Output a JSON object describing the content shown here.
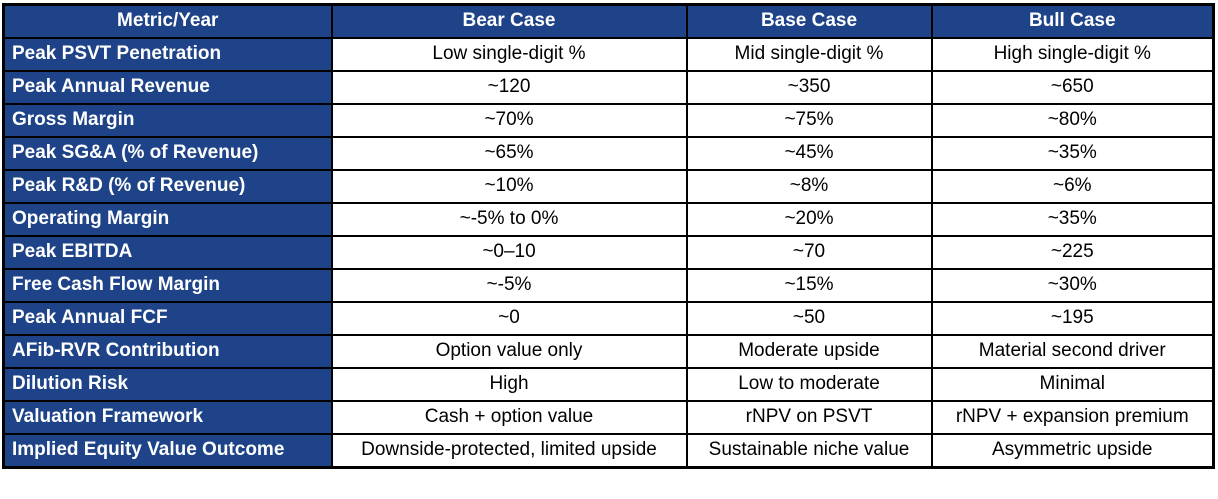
{
  "colors": {
    "header_bg": "#1e4388",
    "header_text": "#ffffff",
    "cell_bg": "#ffffff",
    "cell_text": "#000000",
    "border": "#000000"
  },
  "chart_data": {
    "type": "table",
    "title": "",
    "columns": [
      "Metric/Year",
      "Bear Case",
      "Base Case",
      "Bull Case"
    ],
    "rows": [
      {
        "metric": "Peak PSVT Penetration",
        "bear": "Low single-digit %",
        "base": "Mid single-digit %",
        "bull": "High single-digit %"
      },
      {
        "metric": "Peak Annual Revenue",
        "bear": "~120",
        "base": "~350",
        "bull": "~650"
      },
      {
        "metric": "Gross Margin",
        "bear": "~70%",
        "base": "~75%",
        "bull": "~80%"
      },
      {
        "metric": "Peak SG&A (% of Revenue)",
        "bear": "~65%",
        "base": "~45%",
        "bull": "~35%"
      },
      {
        "metric": "Peak R&D (% of Revenue)",
        "bear": "~10%",
        "base": "~8%",
        "bull": "~6%"
      },
      {
        "metric": "Operating Margin",
        "bear": "~-5% to 0%",
        "base": "~20%",
        "bull": "~35%"
      },
      {
        "metric": "Peak EBITDA",
        "bear": "~0–10",
        "base": "~70",
        "bull": "~225"
      },
      {
        "metric": "Free Cash Flow Margin",
        "bear": "~-5%",
        "base": "~15%",
        "bull": "~30%"
      },
      {
        "metric": "Peak Annual FCF",
        "bear": "~0",
        "base": "~50",
        "bull": "~195"
      },
      {
        "metric": "AFib-RVR Contribution",
        "bear": "Option value only",
        "base": "Moderate upside",
        "bull": "Material second driver"
      },
      {
        "metric": "Dilution Risk",
        "bear": "High",
        "base": "Low to moderate",
        "bull": "Minimal"
      },
      {
        "metric": "Valuation Framework",
        "bear": "Cash + option value",
        "base": "rNPV on PSVT",
        "bull": "rNPV + expansion premium"
      },
      {
        "metric": "Implied Equity Value Outcome",
        "bear": "Downside-protected, limited upside",
        "base": "Sustainable niche value",
        "bull": "Asymmetric upside"
      }
    ]
  }
}
